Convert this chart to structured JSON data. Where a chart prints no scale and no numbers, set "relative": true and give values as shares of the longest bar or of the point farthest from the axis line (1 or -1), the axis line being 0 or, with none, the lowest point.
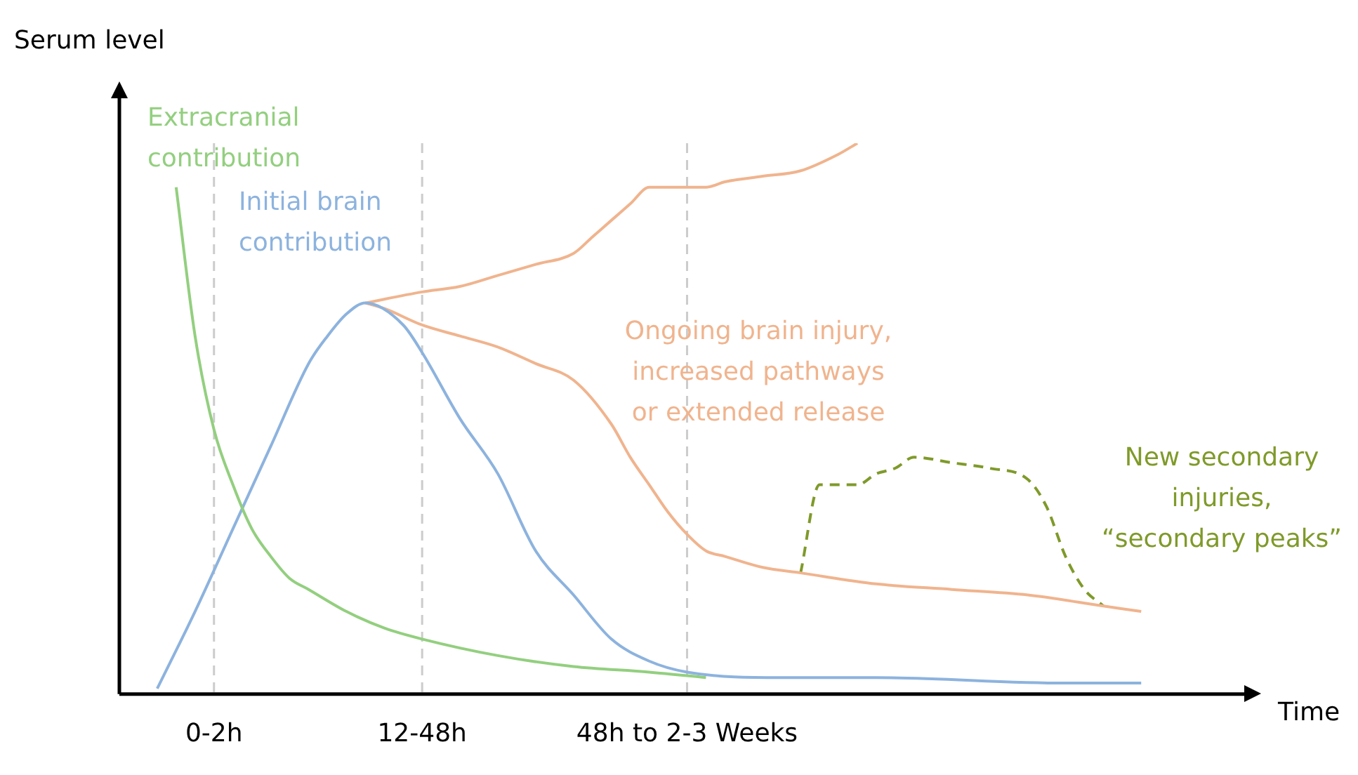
{
  "chart_data": {
    "type": "line",
    "relative": true,
    "xlabel": "Time",
    "ylabel": "Serum level",
    "marker": "none",
    "categories": [
      null,
      null,
      null,
      null,
      null,
      "0-2h",
      null,
      null,
      null,
      null,
      null,
      null,
      null,
      null,
      null,
      null,
      "12-48h",
      null,
      null,
      null,
      null,
      null,
      null,
      null,
      null,
      null,
      null,
      null,
      null,
      null,
      "48h to 2-3 Weeks",
      null,
      null,
      null,
      null,
      null,
      null,
      null,
      null,
      null,
      null,
      null,
      null,
      null,
      null,
      null,
      null,
      null,
      null,
      null,
      null,
      null,
      null,
      null,
      null,
      null,
      null,
      null,
      null,
      null
    ],
    "series": [
      {
        "name": "Extracranial\ncontribution",
        "color": "#93cf7f",
        "values": [
          null,
          null,
          null,
          0.92,
          0.65,
          0.48,
          0.38,
          0.3,
          0.25,
          0.21,
          0.19,
          null,
          0.15,
          null,
          0.12,
          null,
          0.1,
          null,
          null,
          null,
          0.07,
          null,
          null,
          null,
          0.05,
          null,
          null,
          null,
          0.04,
          null,
          null,
          0.03,
          null,
          null,
          null,
          null,
          null,
          null,
          null,
          null,
          null,
          null,
          null,
          null,
          null,
          null,
          null,
          null,
          null,
          null,
          null,
          null,
          null,
          null,
          null,
          null,
          null,
          null,
          null,
          null
        ]
      },
      {
        "name": "Initial brain\ncontribution",
        "color": "#8db3de",
        "values": [
          null,
          null,
          0.01,
          null,
          0.15,
          null,
          0.3,
          null,
          0.45,
          null,
          0.6,
          0.65,
          0.69,
          0.71,
          null,
          0.67,
          0.62,
          null,
          0.5,
          null,
          0.4,
          null,
          0.26,
          null,
          0.18,
          null,
          0.1,
          null,
          0.06,
          null,
          0.04,
          null,
          null,
          null,
          null,
          0.03,
          null,
          null,
          null,
          null,
          0.03,
          null,
          null,
          null,
          null,
          null,
          null,
          null,
          null,
          null,
          0.02,
          null,
          null,
          null,
          0.02,
          null,
          null,
          null,
          null,
          null
        ]
      },
      {
        "color": "#f0b48e",
        "values": [
          null,
          null,
          null,
          null,
          null,
          null,
          null,
          null,
          null,
          null,
          null,
          null,
          null,
          0.71,
          null,
          null,
          0.73,
          null,
          0.74,
          null,
          0.76,
          null,
          0.78,
          null,
          0.8,
          0.83,
          0.86,
          0.89,
          0.92,
          0.92,
          0.92,
          0.92,
          0.93,
          null,
          0.94,
          null,
          0.95,
          null,
          0.98,
          1,
          null,
          null,
          null,
          null,
          null,
          null,
          null,
          null,
          null,
          null,
          null,
          null,
          null,
          null,
          null,
          null,
          null,
          null,
          null,
          null
        ]
      },
      {
        "name": "Ongoing brain injury,\nincreased pathways\nor extended release",
        "color": "#f0b48e",
        "values": [
          null,
          null,
          null,
          null,
          null,
          null,
          null,
          null,
          null,
          null,
          null,
          null,
          null,
          0.71,
          0.7,
          null,
          0.67,
          null,
          0.65,
          null,
          0.63,
          null,
          0.6,
          null,
          0.57,
          null,
          0.49,
          0.43,
          0.38,
          0.33,
          0.29,
          0.26,
          0.25,
          null,
          0.23,
          null,
          0.22,
          null,
          null,
          null,
          0.2,
          null,
          null,
          null,
          0.19,
          null,
          null,
          null,
          0.18,
          null,
          null,
          null,
          0.16,
          null,
          0.15,
          null,
          null,
          null,
          null,
          null
        ]
      },
      {
        "name": "New secondary\ninjuries,\n“secondary peaks”",
        "color": "#7f9a2a",
        "line_style": "dashed",
        "values": [
          null,
          null,
          null,
          null,
          null,
          null,
          null,
          null,
          null,
          null,
          null,
          null,
          null,
          null,
          null,
          null,
          null,
          null,
          null,
          null,
          null,
          null,
          null,
          null,
          null,
          null,
          null,
          null,
          null,
          null,
          null,
          null,
          null,
          null,
          null,
          null,
          0.22,
          0.38,
          0.38,
          0.38,
          0.4,
          0.41,
          0.43,
          null,
          0.42,
          null,
          0.41,
          null,
          0.39,
          0.34,
          0.25,
          0.19,
          0.16,
          null,
          null,
          null,
          null,
          null,
          null,
          null
        ]
      }
    ],
    "ref_lines": [
      {
        "axis": "x",
        "value": "0-2h",
        "color": "#cccccc",
        "line_style": "dashed"
      },
      {
        "axis": "x",
        "value": "12-48h",
        "color": "#cccccc",
        "line_style": "dashed"
      },
      {
        "axis": "x",
        "value": "48h to 2-3 Weeks",
        "color": "#cccccc",
        "line_style": "dashed"
      }
    ]
  }
}
